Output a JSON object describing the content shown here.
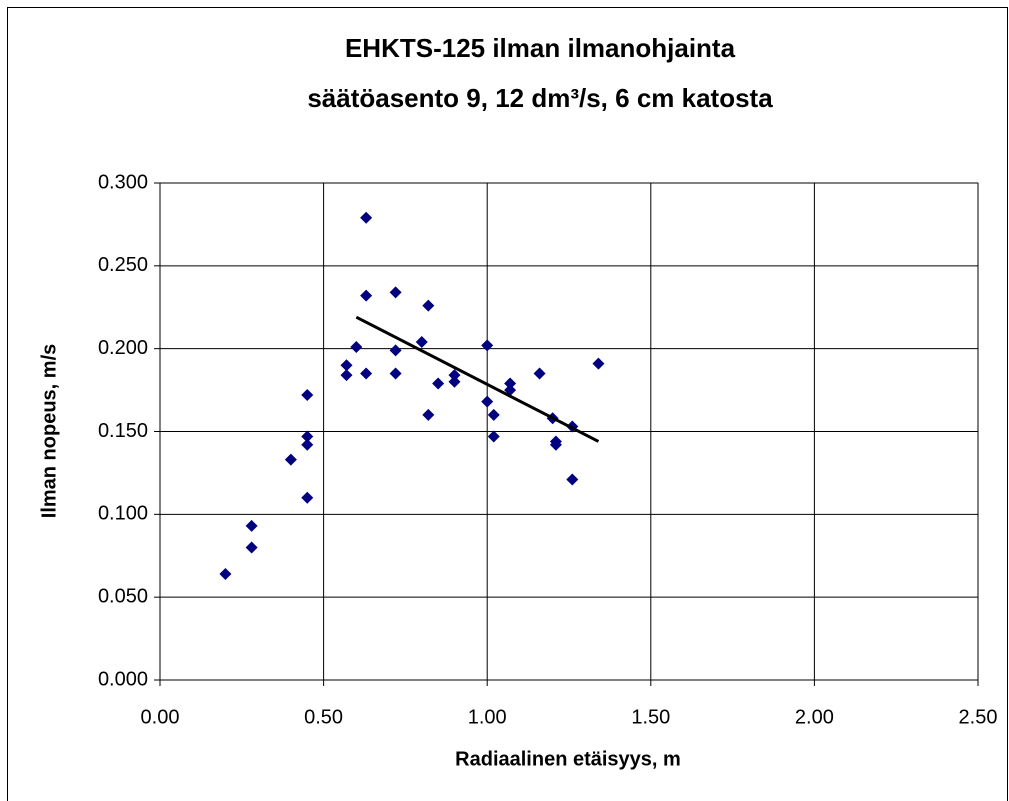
{
  "chart_data": {
    "type": "scatter",
    "title": [
      "EHKTS-125 ilman ilmanohjainta",
      "säätöasento 9, 12 dm³/s, 6 cm katosta"
    ],
    "x_label": "Radiaalinen etäisyys, m",
    "y_label": "Ilman nopeus, m/s",
    "series": [
      {
        "color": "#000080",
        "x": [
          0.2,
          0.28,
          0.28,
          0.4,
          0.45,
          0.45,
          0.45,
          0.45,
          0.57,
          0.57,
          0.6,
          0.63,
          0.63,
          0.63,
          0.72,
          0.72,
          0.72,
          0.8,
          0.82,
          0.82,
          0.85,
          0.9,
          0.9,
          1.0,
          1.0,
          1.02,
          1.02,
          1.07,
          1.07,
          1.16,
          1.2,
          1.21,
          1.21,
          1.26,
          1.26,
          1.34
        ],
        "values": [
          0.064,
          0.093,
          0.08,
          0.133,
          0.172,
          0.147,
          0.142,
          0.11,
          0.19,
          0.184,
          0.201,
          0.279,
          0.232,
          0.185,
          0.234,
          0.199,
          0.185,
          0.204,
          0.226,
          0.16,
          0.179,
          0.184,
          0.18,
          0.202,
          0.168,
          0.16,
          0.147,
          0.179,
          0.175,
          0.185,
          0.158,
          0.144,
          0.142,
          0.153,
          0.121,
          0.191
        ]
      }
    ],
    "trendline": {
      "color": "#000000",
      "x": [
        0.6,
        1.34
      ],
      "values": [
        0.219,
        0.144
      ]
    },
    "xlim": [
      0,
      2.5
    ],
    "ylim": [
      0,
      0.3
    ],
    "xticks": [
      {
        "value": 0,
        "label": "0.00"
      },
      {
        "value": 0.5,
        "label": "0.50"
      },
      {
        "value": 1,
        "label": "1.00"
      },
      {
        "value": 1.5,
        "label": "1.50"
      },
      {
        "value": 2,
        "label": "2.00"
      },
      {
        "value": 2.5,
        "label": "2.50"
      }
    ],
    "yticks": [
      {
        "value": 0,
        "label": "0.000"
      },
      {
        "value": 0.05,
        "label": "0.050"
      },
      {
        "value": 0.1,
        "label": "0.100"
      },
      {
        "value": 0.15,
        "label": "0.150"
      },
      {
        "value": 0.2,
        "label": "0.200"
      },
      {
        "value": 0.25,
        "label": "0.250"
      },
      {
        "value": 0.3,
        "label": "0.300"
      }
    ],
    "grid": true
  }
}
